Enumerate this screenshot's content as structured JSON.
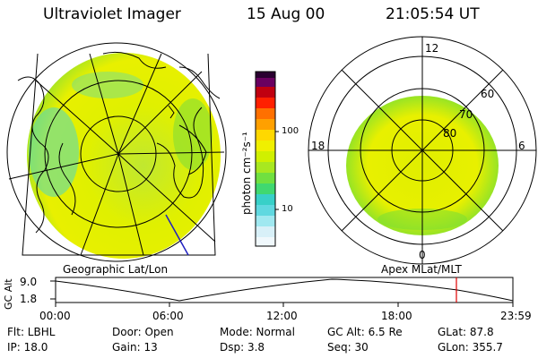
{
  "header": {
    "instrument": "Ultraviolet Imager",
    "date": "15 Aug 00",
    "time": "21:05:54 UT"
  },
  "colorbar": {
    "unit_label": "photon cm⁻²s⁻¹",
    "tick_100": "100",
    "tick_10": "10"
  },
  "left_panel": {
    "caption": "Geographic Lat/Lon"
  },
  "right_panel": {
    "caption": "Apex MLat/MLT",
    "mlt_labels": {
      "top": "12",
      "left": "18",
      "right": "6",
      "bottom": "0"
    },
    "mlat_labels": {
      "l60": "60",
      "l70": "70",
      "l80": "80"
    }
  },
  "alt_plot": {
    "ylabel": "GC Alt",
    "y_high": "9.0",
    "y_low": "1.8",
    "x_ticks": [
      "00:00",
      "06:00",
      "12:00",
      "18:00",
      "23:59"
    ]
  },
  "info": {
    "flt": "Flt: LBHL",
    "door": "Door: Open",
    "mode": "Mode: Normal",
    "gc_alt": "GC Alt: 6.5 Re",
    "glat": "GLat:  87.8",
    "ip": "IP: 18.0",
    "gain": "Gain: 13",
    "dsp": "Dsp:     3.8",
    "seq": "Seq: 30",
    "glon": "GLon: 355.7"
  },
  "colors": {
    "aurora_yellow": "#e8f000",
    "aurora_green": "#8ee020",
    "aurora_cyan": "#40d8d0",
    "marker_red": "#e00000"
  }
}
